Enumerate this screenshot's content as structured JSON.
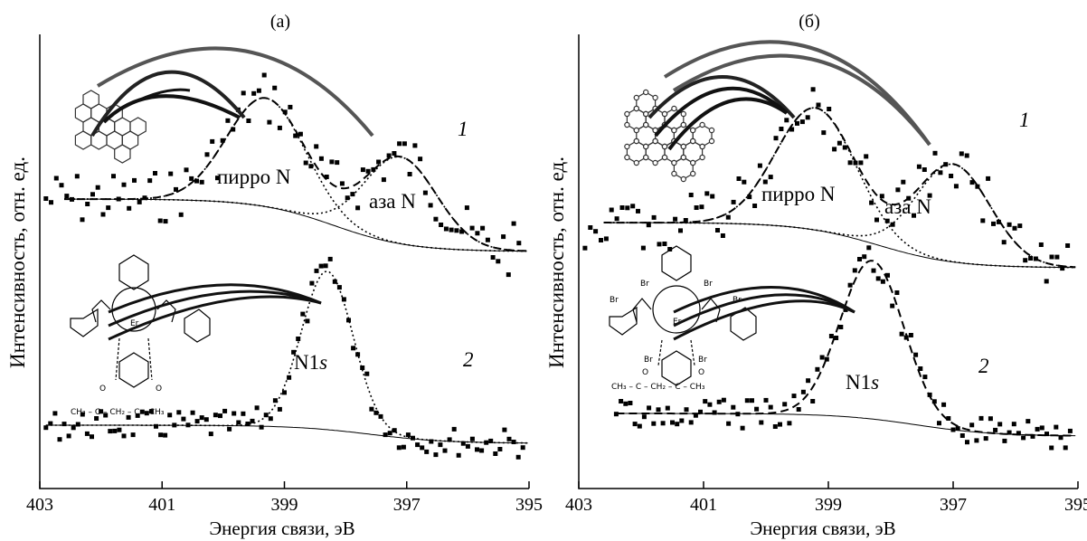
{
  "chart_data": [
    {
      "type": "scatter",
      "title": "(а)",
      "xlabel": "Энергия связи, эВ",
      "ylabel": "Интенсивность, отн. ед.",
      "xlim": [
        403,
        395
      ],
      "xticks": [
        "403",
        "401",
        "399",
        "397",
        "395"
      ],
      "annotations": {
        "peak1": "пирро N",
        "peak2": "аза N",
        "n1s": "N1s",
        "curve1": "1",
        "curve2": "2"
      },
      "series": [
        {
          "name": "1",
          "components": [
            "пирро N",
            "аза N"
          ],
          "peaks": [
            {
              "label": "пирро N",
              "center": 399.3,
              "fwhm": 1.5
            },
            {
              "label": "аза N",
              "center": 397.1,
              "fwhm": 1.4
            }
          ]
        },
        {
          "name": "2",
          "components": [
            "N1s"
          ],
          "peaks": [
            {
              "label": "N1s",
              "center": 398.3,
              "fwhm": 1.0
            }
          ]
        }
      ]
    },
    {
      "type": "scatter",
      "title": "(б)",
      "xlabel": "Энергия связи, эВ",
      "ylabel": "Интенсивность, отн. ед.",
      "xlim": [
        403,
        395
      ],
      "xticks": [
        "403",
        "401",
        "399",
        "397",
        "395"
      ],
      "annotations": {
        "peak1": "пирро N",
        "peak2": "аза N",
        "n1s": "N1s",
        "curve1": "1",
        "curve2": "2"
      },
      "series": [
        {
          "name": "1",
          "components": [
            "пирро N",
            "аза N"
          ],
          "peaks": [
            {
              "label": "пирро N",
              "center": 399.2,
              "fwhm": 1.5
            },
            {
              "label": "аза N",
              "center": 397.0,
              "fwhm": 1.4
            }
          ]
        },
        {
          "name": "2",
          "components": [
            "N1s"
          ],
          "peaks": [
            {
              "label": "N1s",
              "center": 398.3,
              "fwhm": 1.2
            }
          ]
        }
      ]
    }
  ],
  "molecule_labels": {
    "acac_chain": "CH₃ – C – CH₂ – C – CH₃",
    "carbonyl_o": "O",
    "metal": "Er",
    "n_atom": "N",
    "br_atom": "Br"
  }
}
